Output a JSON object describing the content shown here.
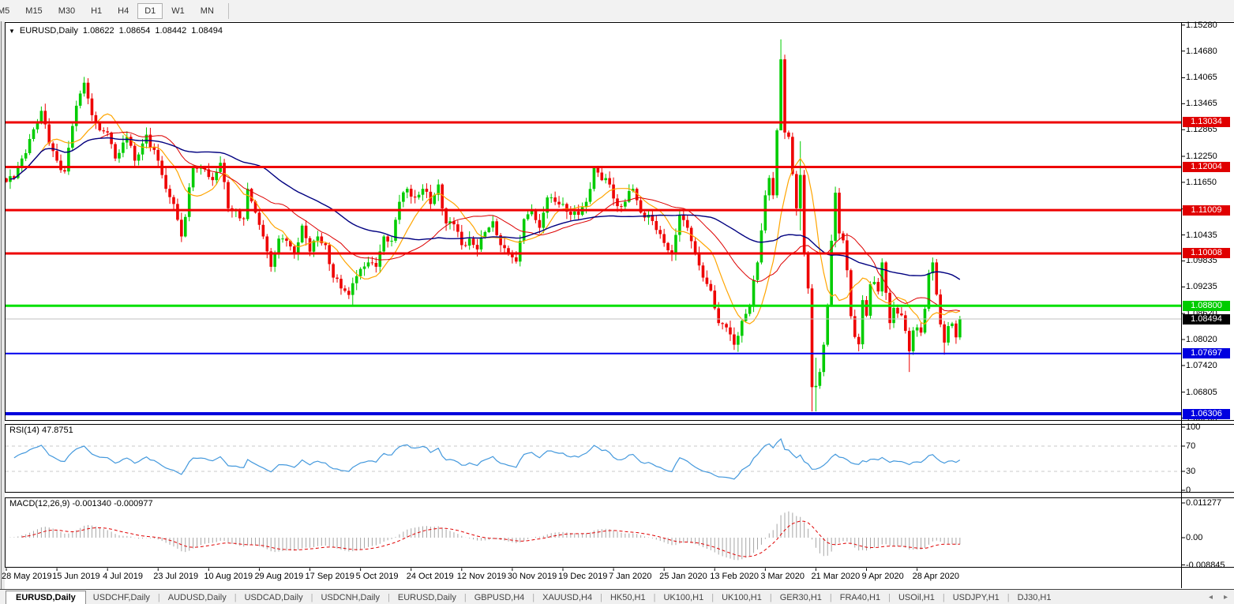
{
  "toolbar": {
    "timeframes": [
      "M5",
      "M15",
      "M30",
      "H1",
      "H4",
      "D1",
      "W1",
      "MN"
    ],
    "active": "D1"
  },
  "title": {
    "caret": "▼",
    "symbol": "EURUSD,Daily",
    "ohlc": [
      "1.08622",
      "1.08654",
      "1.08442",
      "1.08494"
    ]
  },
  "price_axis": {
    "ticks": [
      "1.15280",
      "1.14680",
      "1.14065",
      "1.13465",
      "1.12865",
      "1.12250",
      "1.11650",
      "1.11035",
      "1.10435",
      "1.09835",
      "1.09235",
      "1.08620",
      "1.08020",
      "1.07420",
      "1.06805",
      "1.06205"
    ],
    "badges": [
      {
        "text": "1.13034",
        "color": "#e00000"
      },
      {
        "text": "1.12004",
        "color": "#e00000"
      },
      {
        "text": "1.11009",
        "color": "#e00000"
      },
      {
        "text": "1.10008",
        "color": "#e00000"
      },
      {
        "text": "1.08800",
        "color": "#00cc00"
      },
      {
        "text": "1.08494",
        "color": "#000000"
      },
      {
        "text": "1.07697",
        "color": "#0000e0"
      },
      {
        "text": "1.06306",
        "color": "#0000e0"
      }
    ]
  },
  "rsi": {
    "label": "RSI(14)",
    "value": "47.8751",
    "ticks": [
      [
        "100",
        100
      ],
      [
        "70",
        70
      ],
      [
        "30",
        30
      ],
      [
        "0",
        0
      ]
    ],
    "levels": [
      70,
      30
    ]
  },
  "macd": {
    "label": "MACD(12,26,9)",
    "value_main": "-0.001340",
    "value_signal": "-0.000977",
    "ticks": [
      [
        "0.011277",
        0.011277
      ],
      [
        "0.00",
        0
      ],
      [
        "-0.008845",
        -0.008845
      ]
    ]
  },
  "date_axis": {
    "step": 13,
    "labels": [
      "28 May 2019",
      "15 Jun 2019",
      "4 Jul 2019",
      "23 Jul 2019",
      "10 Aug 2019",
      "29 Aug 2019",
      "17 Sep 2019",
      "5 Oct 2019",
      "24 Oct 2019",
      "12 Nov 2019",
      "30 Nov 2019",
      "19 Dec 2019",
      "7 Jan 2020",
      "25 Jan 2020",
      "13 Feb 2020",
      "3 Mar 2020",
      "21 Mar 2020",
      "9 Apr 2020",
      "28 Apr 2020"
    ]
  },
  "tabs": {
    "items": [
      "EURUSD,Daily",
      "USDCHF,Daily",
      "AUDUSD,Daily",
      "USDCAD,Daily",
      "USDCNH,Daily",
      "EURUSD,Daily",
      "GBPUSD,H4",
      "XAUUSD,H4",
      "HK50,H1",
      "UK100,H1",
      "UK100,H1",
      "GER30,H1",
      "FRA40,H1",
      "USOil,H1",
      "USDJPY,H1",
      "DJ30,H1"
    ],
    "active_index": 0,
    "scroll_left": "◂",
    "scroll_right": "▸"
  },
  "chart_data": {
    "type": "candlestick",
    "symbol": "EURUSD",
    "timeframe": "Daily",
    "price_range": {
      "top": 1.15349,
      "bottom": 1.06143
    },
    "colors": {
      "up": "#00cc00",
      "down": "#ee0000",
      "rsi": "#4499dd",
      "macd_hist": "#a6a6a6",
      "macd_signal": "#e00000",
      "level_dash": "#c8c8c8"
    },
    "hlines": [
      {
        "price": 1.13034,
        "color": "#ee0000",
        "width": 3
      },
      {
        "price": 1.12004,
        "color": "#ee0000",
        "width": 3
      },
      {
        "price": 1.11009,
        "color": "#ee0000",
        "width": 3
      },
      {
        "price": 1.10008,
        "color": "#ee0000",
        "width": 3
      },
      {
        "price": 1.088,
        "color": "#00e000",
        "width": 3
      },
      {
        "price": 1.08494,
        "color": "#c0c0c0",
        "width": 1
      },
      {
        "price": 1.07697,
        "color": "#0000ee",
        "width": 2
      },
      {
        "price": 1.06306,
        "color": "#0000dd",
        "width": 4
      }
    ],
    "ma": [
      {
        "period": 10,
        "color": "#ffa500",
        "width": 1.2
      },
      {
        "period": 25,
        "color": "#dd0000",
        "width": 1
      },
      {
        "period": 50,
        "color": "#000080",
        "width": 1.4
      }
    ],
    "rsi_period": 14,
    "macd_params": [
      12,
      26,
      9
    ],
    "close_anchors": [
      [
        0,
        1.1166
      ],
      [
        2,
        1.1175
      ],
      [
        4,
        1.122
      ],
      [
        6,
        1.1265
      ],
      [
        9,
        1.133
      ],
      [
        11,
        1.1255
      ],
      [
        13,
        1.1215
      ],
      [
        15,
        1.119
      ],
      [
        17,
        1.1295
      ],
      [
        19,
        1.137
      ],
      [
        20,
        1.1395
      ],
      [
        22,
        1.132
      ],
      [
        24,
        1.1285
      ],
      [
        26,
        1.128
      ],
      [
        28,
        1.122
      ],
      [
        31,
        1.127
      ],
      [
        33,
        1.1215
      ],
      [
        36,
        1.1275
      ],
      [
        39,
        1.1215
      ],
      [
        41,
        1.115
      ],
      [
        43,
        1.1115
      ],
      [
        45,
        1.104
      ],
      [
        46,
        1.1085
      ],
      [
        48,
        1.12
      ],
      [
        51,
        1.1195
      ],
      [
        53,
        1.117
      ],
      [
        55,
        1.121
      ],
      [
        57,
        1.1105
      ],
      [
        59,
        1.11
      ],
      [
        61,
        1.108
      ],
      [
        62,
        1.115
      ],
      [
        64,
        1.1095
      ],
      [
        66,
        1.104
      ],
      [
        68,
        1.097
      ],
      [
        70,
        1.1035
      ],
      [
        72,
        1.103
      ],
      [
        74,
        1.1
      ],
      [
        76,
        1.1065
      ],
      [
        78,
        1.1005
      ],
      [
        80,
        1.104
      ],
      [
        82,
        1.102
      ],
      [
        84,
        1.0945
      ],
      [
        86,
        1.092
      ],
      [
        88,
        1.0905
      ],
      [
        89,
        1.0932
      ],
      [
        91,
        1.0965
      ],
      [
        93,
        1.098
      ],
      [
        95,
        1.097
      ],
      [
        97,
        1.104
      ],
      [
        99,
        1.103
      ],
      [
        101,
        1.112
      ],
      [
        103,
        1.115
      ],
      [
        105,
        1.113
      ],
      [
        107,
        1.115
      ],
      [
        109,
        1.1115
      ],
      [
        111,
        1.116
      ],
      [
        113,
        1.107
      ],
      [
        115,
        1.1068
      ],
      [
        117,
        1.102
      ],
      [
        119,
        1.1035
      ],
      [
        121,
        1.101
      ],
      [
        123,
        1.105
      ],
      [
        125,
        1.1075
      ],
      [
        127,
        1.102
      ],
      [
        129,
        1.1
      ],
      [
        131,
        1.0982
      ],
      [
        133,
        1.108
      ],
      [
        135,
        1.11
      ],
      [
        137,
        1.106
      ],
      [
        139,
        1.113
      ],
      [
        141,
        1.112
      ],
      [
        143,
        1.1115
      ],
      [
        145,
        1.109
      ],
      [
        147,
        1.109
      ],
      [
        149,
        1.112
      ],
      [
        151,
        1.12
      ],
      [
        153,
        1.117
      ],
      [
        155,
        1.116
      ],
      [
        157,
        1.111
      ],
      [
        159,
        1.112
      ],
      [
        161,
        1.115
      ],
      [
        163,
        1.1095
      ],
      [
        165,
        1.109
      ],
      [
        167,
        1.1055
      ],
      [
        169,
        1.1025
      ],
      [
        171,
        1.1
      ],
      [
        173,
        1.109
      ],
      [
        175,
        1.106
      ],
      [
        177,
        1.1
      ],
      [
        179,
        1.0945
      ],
      [
        181,
        1.0915
      ],
      [
        183,
        1.084
      ],
      [
        185,
        1.083
      ],
      [
        187,
        1.079
      ],
      [
        189,
        1.0845
      ],
      [
        191,
        1.088
      ],
      [
        193,
        1.098
      ],
      [
        195,
        1.1135
      ],
      [
        196,
        1.1175
      ],
      [
        197,
        1.1135
      ],
      [
        198,
        1.1285
      ],
      [
        199,
        1.1449
      ],
      [
        200,
        1.128
      ],
      [
        201,
        1.127
      ],
      [
        202,
        1.1184
      ],
      [
        203,
        1.1105
      ],
      [
        204,
        1.1182
      ],
      [
        205,
        1.1
      ],
      [
        206,
        1.092
      ],
      [
        207,
        1.0692
      ],
      [
        208,
        1.0695
      ],
      [
        209,
        1.0727
      ],
      [
        210,
        1.079
      ],
      [
        211,
        1.088
      ],
      [
        212,
        1.103
      ],
      [
        213,
        1.1141
      ],
      [
        214,
        1.1047
      ],
      [
        215,
        1.1031
      ],
      [
        216,
        1.0962
      ],
      [
        217,
        1.0856
      ],
      [
        218,
        1.0808
      ],
      [
        219,
        1.0791
      ],
      [
        220,
        1.0893
      ],
      [
        221,
        1.0857
      ],
      [
        222,
        1.093
      ],
      [
        223,
        1.0935
      ],
      [
        224,
        1.0913
      ],
      [
        225,
        1.098
      ],
      [
        226,
        1.091
      ],
      [
        227,
        1.084
      ],
      [
        228,
        1.0875
      ],
      [
        229,
        1.0862
      ],
      [
        230,
        1.0858
      ],
      [
        231,
        1.0822
      ],
      [
        232,
        1.0775
      ],
      [
        233,
        1.0823
      ],
      [
        234,
        1.083
      ],
      [
        235,
        1.0818
      ],
      [
        236,
        1.0873
      ],
      [
        237,
        1.0955
      ],
      [
        238,
        1.098
      ],
      [
        239,
        1.0906
      ],
      [
        240,
        1.0837
      ],
      [
        241,
        1.0795
      ],
      [
        242,
        1.0833
      ],
      [
        243,
        1.0839
      ],
      [
        244,
        1.0807
      ],
      [
        245,
        1.08494
      ]
    ],
    "wick_overrides": {
      "45": [
        1.1095,
        1.1027
      ],
      "89": [
        1.0945,
        1.0879
      ],
      "187": [
        1.083,
        1.0778
      ],
      "199": [
        1.1495,
        1.129
      ],
      "204": [
        1.126,
        1.1054
      ],
      "207": [
        1.093,
        1.0636
      ],
      "208": [
        1.076,
        1.0636
      ],
      "232": [
        1.083,
        1.0727
      ],
      "241": [
        1.0845,
        1.0767
      ]
    }
  }
}
